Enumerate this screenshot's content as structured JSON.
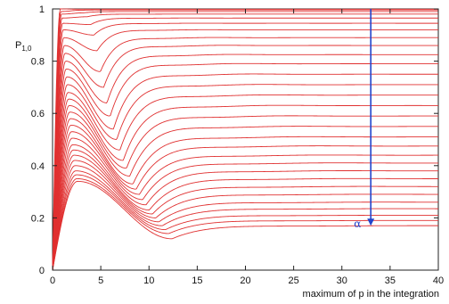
{
  "chart_data": {
    "type": "line",
    "xlabel": "maximum of p in the integration",
    "ylabel_main": "P",
    "ylabel_sub": "1,0",
    "xlim": [
      0,
      40
    ],
    "ylim": [
      0,
      1
    ],
    "x_ticks": [
      "0",
      "5",
      "10",
      "15",
      "20",
      "25",
      "30",
      "35",
      "40"
    ],
    "y_ticks": [
      "0",
      "0.2",
      "0.4",
      "0.6",
      "0.8",
      "1"
    ],
    "grid": false,
    "series_color": "#e03030",
    "arrow_color": "#2244cc",
    "annotation": {
      "text": "α",
      "arrow_x": 33,
      "arrow_y_start": 1.0,
      "arrow_y_end": 0.17
    },
    "curve_family": {
      "count": 30,
      "shape": "initial rise to a peak near x≈1.5–3, dip, then plateau",
      "plateau_values": [
        0.999,
        0.996,
        0.99,
        0.98,
        0.965,
        0.945,
        0.92,
        0.89,
        0.86,
        0.825,
        0.79,
        0.75,
        0.71,
        0.67,
        0.63,
        0.59,
        0.55,
        0.51,
        0.475,
        0.44,
        0.41,
        0.38,
        0.35,
        0.32,
        0.29,
        0.26,
        0.235,
        0.21,
        0.19,
        0.17
      ],
      "peak_values": [
        1.0,
        0.99,
        0.98,
        0.965,
        0.945,
        0.92,
        0.89,
        0.86,
        0.83,
        0.8,
        0.77,
        0.74,
        0.71,
        0.68,
        0.655,
        0.63,
        0.605,
        0.58,
        0.555,
        0.53,
        0.505,
        0.48,
        0.46,
        0.44,
        0.42,
        0.4,
        0.38,
        0.365,
        0.35,
        0.34
      ],
      "dip_values": [
        0.999,
        0.995,
        0.985,
        0.97,
        0.94,
        0.9,
        0.84,
        0.76,
        0.7,
        0.64,
        0.59,
        0.54,
        0.5,
        0.46,
        0.42,
        0.39,
        0.36,
        0.33,
        0.31,
        0.29,
        0.27,
        0.25,
        0.23,
        0.215,
        0.2,
        0.185,
        0.17,
        0.155,
        0.14,
        0.12
      ]
    }
  }
}
